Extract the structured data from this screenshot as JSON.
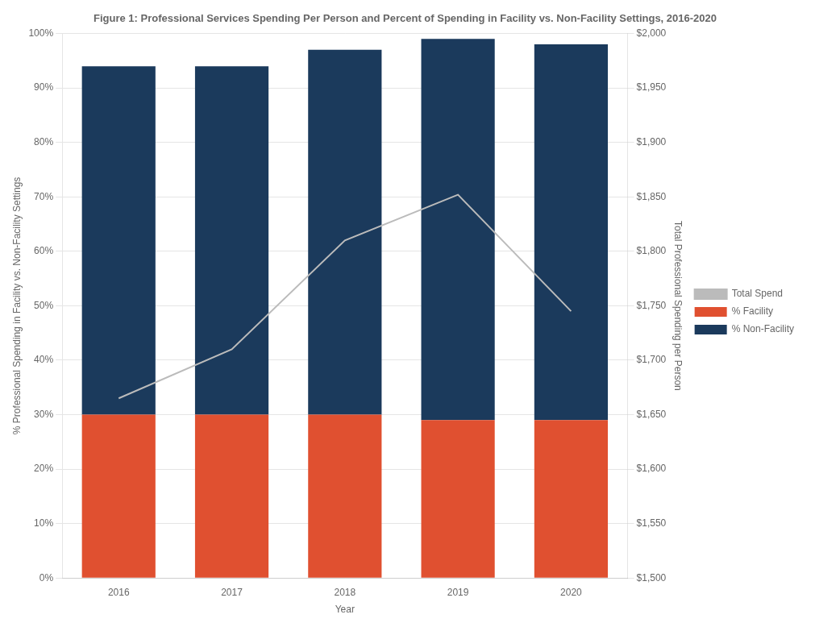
{
  "chart_data": {
    "type": "bar",
    "title": "Figure 1: Professional Services Spending Per Person and Percent of Spending in Facility vs. Non-Facility Settings, 2016-2020",
    "xlabel": "Year",
    "ylabel": "% Professional Spending in Facility vs. Non-Facility Settings",
    "y2label": "Total Professional Spending per Person",
    "categories": [
      "2016",
      "2017",
      "2018",
      "2019",
      "2020"
    ],
    "stacked": true,
    "series": [
      {
        "name": "% Facility",
        "color": "#E05030",
        "values": [
          30.0,
          30.0,
          30.0,
          29.0,
          29.0
        ]
      },
      {
        "name": "% Non-Facility",
        "color": "#1B3A5C",
        "values": [
          64.0,
          64.0,
          67.0,
          70.0,
          69.0
        ]
      },
      {
        "name": "Total Spend",
        "type": "line",
        "axis": "y2",
        "color": "#BBBBBB",
        "values": [
          1665,
          1710,
          1810,
          1852,
          1745
        ]
      }
    ],
    "ylim": [
      0,
      100
    ],
    "yticks": [
      {
        "value": 0,
        "label": "0%"
      },
      {
        "value": 10,
        "label": "10%"
      },
      {
        "value": 20,
        "label": "20%"
      },
      {
        "value": 30,
        "label": "30%"
      },
      {
        "value": 40,
        "label": "40%"
      },
      {
        "value": 50,
        "label": "50%"
      },
      {
        "value": 60,
        "label": "60%"
      },
      {
        "value": 70,
        "label": "70%"
      },
      {
        "value": 80,
        "label": "80%"
      },
      {
        "value": 90,
        "label": "90%"
      },
      {
        "value": 100,
        "label": "100%"
      }
    ],
    "y2lim": [
      1500,
      2000
    ],
    "y2ticks": [
      {
        "value": 1500,
        "label": "$1,500"
      },
      {
        "value": 1550,
        "label": "$1,550"
      },
      {
        "value": 1600,
        "label": "$1,600"
      },
      {
        "value": 1650,
        "label": "$1,650"
      },
      {
        "value": 1700,
        "label": "$1,700"
      },
      {
        "value": 1750,
        "label": "$1,750"
      },
      {
        "value": 1800,
        "label": "$1,800"
      },
      {
        "value": 1850,
        "label": "$1,850"
      },
      {
        "value": 1900,
        "label": "$1,900"
      },
      {
        "value": 1950,
        "label": "$1,950"
      },
      {
        "value": 2000,
        "label": "$2,000"
      }
    ],
    "grid": true,
    "legend": "right"
  }
}
